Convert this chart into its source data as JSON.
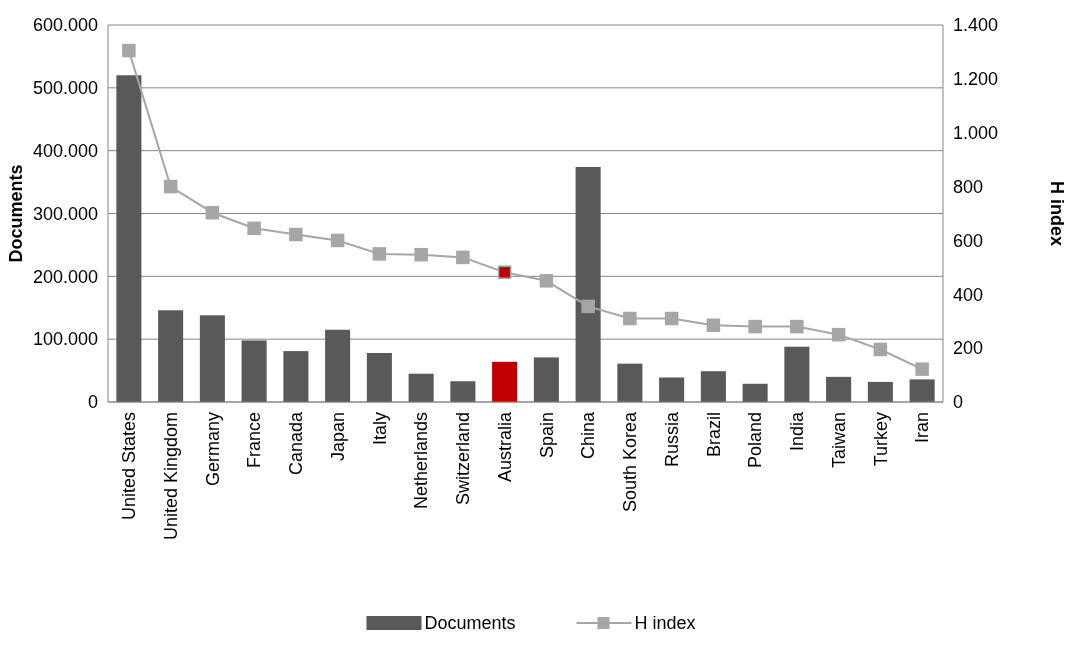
{
  "chart_data": {
    "type": "bar",
    "ylabel": "Documents",
    "y2label": "H index",
    "categories": [
      "United States",
      "United Kingdom",
      "Germany",
      "France",
      "Canada",
      "Japan",
      "Italy",
      "Netherlands",
      "Switzerland",
      "Australia",
      "Spain",
      "China",
      "South Korea",
      "Russia",
      "Brazil",
      "Poland",
      "India",
      "Taiwan",
      "Turkey",
      "Iran"
    ],
    "series": [
      {
        "name": "Documents",
        "color": "#595959",
        "colors": [
          "#595959",
          "#595959",
          "#595959",
          "#595959",
          "#595959",
          "#595959",
          "#595959",
          "#595959",
          "#595959",
          "#c00000",
          "#595959",
          "#595959",
          "#595959",
          "#595959",
          "#595959",
          "#595959",
          "#595959",
          "#595959",
          "#595959",
          "#595959"
        ],
        "values": [
          520000,
          146000,
          138000,
          98000,
          81000,
          115000,
          78000,
          45000,
          33000,
          64000,
          71000,
          374000,
          61000,
          39000,
          49000,
          29000,
          88000,
          40000,
          32000,
          36000
        ]
      },
      {
        "name": "H index",
        "type": "line",
        "axis": "y2",
        "color": "#a6a6a6",
        "marker": "square",
        "colors": [
          "#a6a6a6",
          "#a6a6a6",
          "#a6a6a6",
          "#a6a6a6",
          "#a6a6a6",
          "#a6a6a6",
          "#a6a6a6",
          "#a6a6a6",
          "#a6a6a6",
          "#c00000",
          "#a6a6a6",
          "#a6a6a6",
          "#a6a6a6",
          "#a6a6a6",
          "#a6a6a6",
          "#a6a6a6",
          "#a6a6a6",
          "#a6a6a6",
          "#a6a6a6",
          "#a6a6a6"
        ],
        "values": [
          1305,
          800,
          703,
          645,
          622,
          600,
          550,
          547,
          537,
          482,
          450,
          355,
          310,
          310,
          285,
          280,
          280,
          250,
          195,
          122
        ]
      }
    ],
    "ylim": [
      0,
      600000
    ],
    "yticks": [
      0,
      {
        "value": 100000,
        "label": "100.000"
      },
      {
        "value": 200000,
        "label": "200.000"
      },
      {
        "value": 300000,
        "label": "300.000"
      },
      {
        "value": 400000,
        "label": "400.000"
      },
      {
        "value": 500000,
        "label": "500.000"
      },
      {
        "value": 600000,
        "label": "600.000"
      }
    ],
    "y2lim": [
      0,
      1400
    ],
    "y2ticks": [
      0,
      200,
      400,
      600,
      800,
      {
        "value": 1000,
        "label": "1.000"
      },
      {
        "value": 1200,
        "label": "1.200"
      },
      {
        "value": 1400,
        "label": "1.400"
      }
    ],
    "grid": "y",
    "legend": "bottom"
  }
}
